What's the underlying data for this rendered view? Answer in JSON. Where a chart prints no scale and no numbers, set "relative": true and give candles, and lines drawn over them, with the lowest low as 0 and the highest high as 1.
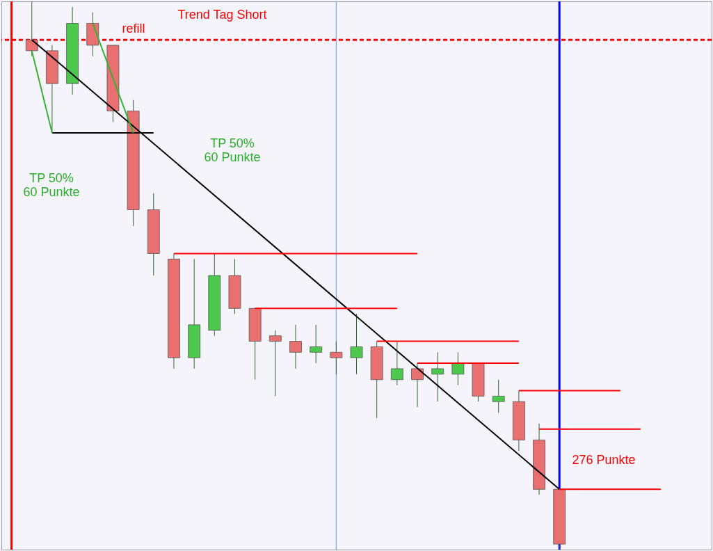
{
  "chart_data": {
    "type": "candlestick",
    "title": "Trend Tag Short",
    "relative": true,
    "categories": [
      null,
      null,
      null,
      null,
      null,
      null,
      null,
      null,
      null,
      null,
      null,
      null,
      null,
      null,
      null,
      null,
      null,
      null,
      null,
      null,
      null,
      null,
      null,
      null,
      null,
      null,
      null,
      null,
      null,
      null,
      null,
      null,
      null,
      null,
      null
    ],
    "ohlc": [
      null,
      [
        0.93,
        1.0,
        0.9,
        0.91
      ],
      [
        0.91,
        0.92,
        0.76,
        0.85
      ],
      [
        0.85,
        0.99,
        0.83,
        0.96
      ],
      [
        0.96,
        0.98,
        0.9,
        0.92
      ],
      [
        0.92,
        0.92,
        0.78,
        0.8
      ],
      [
        0.8,
        0.82,
        0.59,
        0.62
      ],
      [
        0.62,
        0.65,
        0.5,
        0.54
      ],
      [
        0.53,
        0.54,
        0.33,
        0.35
      ],
      [
        0.35,
        0.53,
        0.33,
        0.41
      ],
      [
        0.4,
        0.54,
        0.39,
        0.5
      ],
      [
        0.5,
        0.53,
        0.43,
        0.44
      ],
      [
        0.44,
        0.44,
        0.31,
        0.38
      ],
      [
        0.39,
        0.4,
        0.28,
        0.38
      ],
      [
        0.38,
        0.41,
        0.33,
        0.36
      ],
      [
        0.36,
        0.41,
        0.34,
        0.37
      ],
      [
        0.36,
        0.38,
        0.32,
        0.35
      ],
      [
        0.35,
        0.43,
        0.32,
        0.37
      ],
      [
        0.37,
        0.38,
        0.24,
        0.31
      ],
      [
        0.31,
        0.38,
        0.3,
        0.33
      ],
      [
        0.33,
        0.34,
        0.26,
        0.31
      ],
      [
        0.32,
        0.36,
        0.27,
        0.33
      ],
      [
        0.32,
        0.36,
        0.3,
        0.34
      ],
      [
        0.34,
        0.34,
        0.27,
        0.28
      ],
      [
        0.27,
        0.31,
        0.25,
        0.28
      ],
      [
        0.27,
        0.29,
        0.18,
        0.2
      ],
      [
        0.2,
        0.23,
        0.1,
        0.11
      ],
      [
        0.11,
        0.11,
        0.0,
        0.01
      ],
      null,
      null,
      null,
      null,
      null,
      null,
      null
    ],
    "colors": [
      null,
      "#e87070",
      "#e87070",
      "#4cc94c",
      "#e87070",
      "#e87070",
      "#e87070",
      "#e87070",
      "#e87070",
      "#4cc94c",
      "#4cc94c",
      "#e87070",
      "#e87070",
      "#e87070",
      "#e87070",
      "#4cc94c",
      "#e87070",
      "#4cc94c",
      "#e87070",
      "#4cc94c",
      "#e87070",
      "#4cc94c",
      "#4cc94c",
      "#e87070",
      "#4cc94c",
      "#e87070",
      "#e87070",
      "#e87070",
      null,
      null,
      null,
      null,
      null,
      null,
      null
    ],
    "series": [
      {
        "type": "line",
        "color": "#000000",
        "values": [
          null,
          0.93,
          null,
          null,
          null,
          null,
          null,
          null,
          null,
          null,
          null,
          null,
          null,
          null,
          null,
          null,
          null,
          null,
          null,
          null,
          null,
          null,
          null,
          null,
          null,
          null,
          null,
          0.11,
          null,
          null,
          null,
          null,
          null,
          null,
          null
        ]
      },
      {
        "type": "line",
        "color": "#000000",
        "values": [
          null,
          null,
          0.76,
          null,
          null,
          null,
          null,
          0.76,
          null,
          null,
          null,
          null,
          null,
          null,
          null,
          null,
          null,
          null,
          null,
          null,
          null,
          null,
          null,
          null,
          null,
          null,
          null,
          null,
          null,
          null,
          null,
          null,
          null,
          null,
          null
        ]
      },
      {
        "type": "line",
        "color": "#33b333",
        "values": [
          null,
          0.91,
          0.76,
          null,
          null,
          null,
          null,
          null,
          null,
          null,
          null,
          null,
          null,
          null,
          null,
          null,
          null,
          null,
          null,
          null,
          null,
          null,
          null,
          null,
          null,
          null,
          null,
          null,
          null,
          null,
          null,
          null,
          null,
          null,
          null
        ]
      },
      {
        "type": "line",
        "color": "#33b333",
        "values": [
          null,
          null,
          null,
          null,
          0.96,
          null,
          0.76,
          null,
          null,
          null,
          null,
          null,
          null,
          null,
          null,
          null,
          null,
          null,
          null,
          null,
          null,
          null,
          null,
          null,
          null,
          null,
          null,
          null,
          null,
          null,
          null,
          null,
          null,
          null,
          null
        ]
      },
      {
        "type": "line",
        "color": "#ff0000",
        "values": [
          null,
          null,
          null,
          null,
          null,
          null,
          null,
          null,
          0.54,
          null,
          null,
          null,
          null,
          null,
          null,
          null,
          null,
          null,
          null,
          null,
          0.54,
          null,
          null,
          null,
          null,
          null,
          null,
          null,
          null,
          null,
          null,
          null,
          null,
          null,
          null
        ]
      },
      {
        "type": "line",
        "color": "#ff0000",
        "values": [
          null,
          null,
          null,
          null,
          null,
          null,
          null,
          null,
          null,
          null,
          null,
          null,
          0.44,
          null,
          null,
          null,
          null,
          null,
          null,
          0.44,
          null,
          null,
          null,
          null,
          null,
          null,
          null,
          null,
          null,
          null,
          null,
          null,
          null,
          null,
          null
        ]
      },
      {
        "type": "line",
        "color": "#ff0000",
        "values": [
          null,
          null,
          null,
          null,
          null,
          null,
          null,
          null,
          null,
          null,
          null,
          null,
          null,
          null,
          null,
          null,
          null,
          null,
          0.38,
          null,
          null,
          null,
          null,
          null,
          null,
          0.38,
          null,
          null,
          null,
          null,
          null,
          null,
          null,
          null,
          null
        ]
      },
      {
        "type": "line",
        "color": "#ff0000",
        "values": [
          null,
          null,
          null,
          null,
          null,
          null,
          null,
          null,
          null,
          null,
          null,
          null,
          null,
          null,
          null,
          null,
          null,
          null,
          null,
          null,
          0.34,
          null,
          null,
          null,
          null,
          0.34,
          null,
          null,
          null,
          null,
          null,
          null,
          null,
          null,
          null
        ]
      },
      {
        "type": "line",
        "color": "#ff0000",
        "values": [
          null,
          null,
          null,
          null,
          null,
          null,
          null,
          null,
          null,
          null,
          null,
          null,
          null,
          null,
          null,
          null,
          null,
          null,
          null,
          null,
          null,
          null,
          null,
          null,
          null,
          0.29,
          null,
          null,
          null,
          null,
          0.29,
          null,
          null,
          null,
          null
        ]
      },
      {
        "type": "line",
        "color": "#ff0000",
        "values": [
          null,
          null,
          null,
          null,
          null,
          null,
          null,
          null,
          null,
          null,
          null,
          null,
          null,
          null,
          null,
          null,
          null,
          null,
          null,
          null,
          null,
          null,
          null,
          null,
          null,
          null,
          0.22,
          null,
          null,
          null,
          null,
          0.22,
          null,
          null,
          null
        ]
      },
      {
        "type": "line",
        "color": "#ff0000",
        "values": [
          null,
          null,
          null,
          null,
          null,
          null,
          null,
          null,
          null,
          null,
          null,
          null,
          null,
          null,
          null,
          null,
          null,
          null,
          null,
          null,
          null,
          null,
          null,
          null,
          null,
          null,
          null,
          0.11,
          null,
          null,
          null,
          null,
          0.11,
          null,
          null
        ]
      }
    ],
    "ref_lines": [
      {
        "axis": "y",
        "value": 0.93,
        "color": "#ff0000",
        "line_style": "dashed"
      }
    ],
    "annotations": [
      "refill",
      "TP 50%\n60 Punkte",
      "TP 50%\n60 Punkte",
      "276 Punkte"
    ]
  }
}
